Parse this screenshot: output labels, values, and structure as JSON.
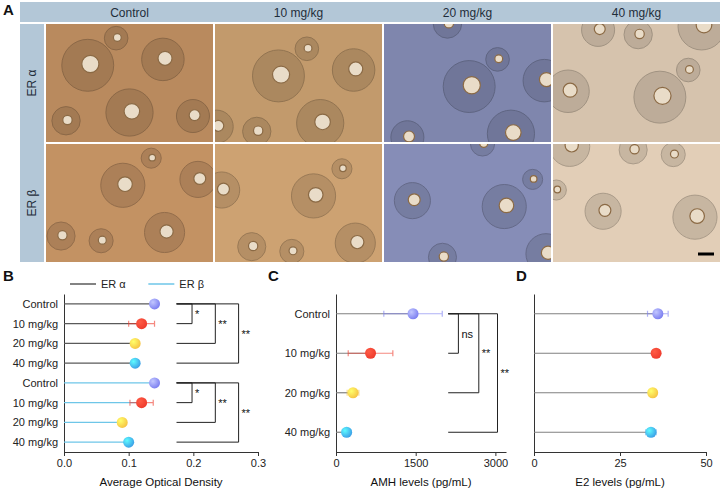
{
  "figure_a": {
    "label": "A",
    "columns": [
      "Control",
      "10 mg/kg",
      "20 mg/kg",
      "40 mg/kg"
    ],
    "rows": [
      "ER α",
      "ER β"
    ]
  },
  "chart_data": [
    {
      "type": "lollipop",
      "label": "B",
      "orientation": "horizontal",
      "categories": [
        "Control",
        "10 mg/kg",
        "20 mg/kg",
        "40 mg/kg",
        "Control",
        "10 mg/kg",
        "20 mg/kg",
        "40 mg/kg"
      ],
      "colors": [
        "#7a7df0",
        "#ee3a2c",
        "#f6c343",
        "#3b9ee6",
        "#7a7df0",
        "#ee3a2c",
        "#f6c343",
        "#3b9ee6"
      ],
      "series": [
        {
          "name": "ER α",
          "color": "#5a5a5a",
          "values": [
            0.14,
            0.12,
            0.11,
            0.11,
            null,
            null,
            null,
            null
          ],
          "errors": [
            0.004,
            0.02,
            0.004,
            0.004,
            null,
            null,
            null,
            null
          ]
        },
        {
          "name": "ER β",
          "color": "#6ec6e8",
          "values": [
            null,
            null,
            null,
            null,
            0.14,
            0.12,
            0.09,
            0.1
          ],
          "errors": [
            null,
            null,
            null,
            null,
            0.003,
            0.018,
            0.005,
            0.005
          ]
        }
      ],
      "xlabel": "Average Optical Density",
      "xlim": [
        0,
        0.3
      ],
      "xticks": [
        {
          "value": 0,
          "label": "0.0"
        },
        0.1,
        0.2,
        0.3
      ],
      "legend": "top",
      "significance": [
        {
          "groups": [
            0,
            1
          ],
          "label": "*"
        },
        {
          "groups": [
            0,
            2
          ],
          "label": "**"
        },
        {
          "groups": [
            0,
            3
          ],
          "label": "**"
        },
        {
          "groups": [
            4,
            5
          ],
          "label": "*"
        },
        {
          "groups": [
            4,
            6
          ],
          "label": "**"
        },
        {
          "groups": [
            4,
            7
          ],
          "label": "**"
        }
      ]
    },
    {
      "type": "lollipop",
      "label": "C",
      "orientation": "horizontal",
      "categories": [
        "Control",
        "10 mg/kg",
        "20 mg/kg",
        "40 mg/kg"
      ],
      "colors": [
        "#7a7df0",
        "#ee3a2c",
        "#f6c343",
        "#3b9ee6"
      ],
      "series": [
        {
          "color": "#808080",
          "values": [
            1450,
            650,
            320,
            200
          ],
          "errors": [
            550,
            420,
            110,
            80
          ]
        }
      ],
      "xlabel": "AMH levels (pg/mL)",
      "xlim": [
        0,
        3200
      ],
      "xticks": [
        0,
        1500,
        3000
      ],
      "significance": [
        {
          "groups": [
            0,
            1
          ],
          "label": "ns"
        },
        {
          "groups": [
            0,
            2
          ],
          "label": "**"
        },
        {
          "groups": [
            0,
            3
          ],
          "label": "**"
        }
      ]
    },
    {
      "type": "lollipop",
      "label": "D",
      "orientation": "horizontal",
      "tick_labels": "x",
      "categories": [
        null,
        null,
        null,
        null
      ],
      "colors": [
        "#7a7df0",
        "#ee3a2c",
        "#f6c343",
        "#3b9ee6"
      ],
      "series": [
        {
          "color": "#808080",
          "values": [
            36,
            35.5,
            34.5,
            34
          ],
          "errors": [
            3,
            0.8,
            0.8,
            1.5
          ]
        }
      ],
      "xlabel": "E2 levels (pg/mL)",
      "xlim": [
        0,
        50
      ],
      "xticks": [
        0,
        25,
        50
      ]
    }
  ]
}
